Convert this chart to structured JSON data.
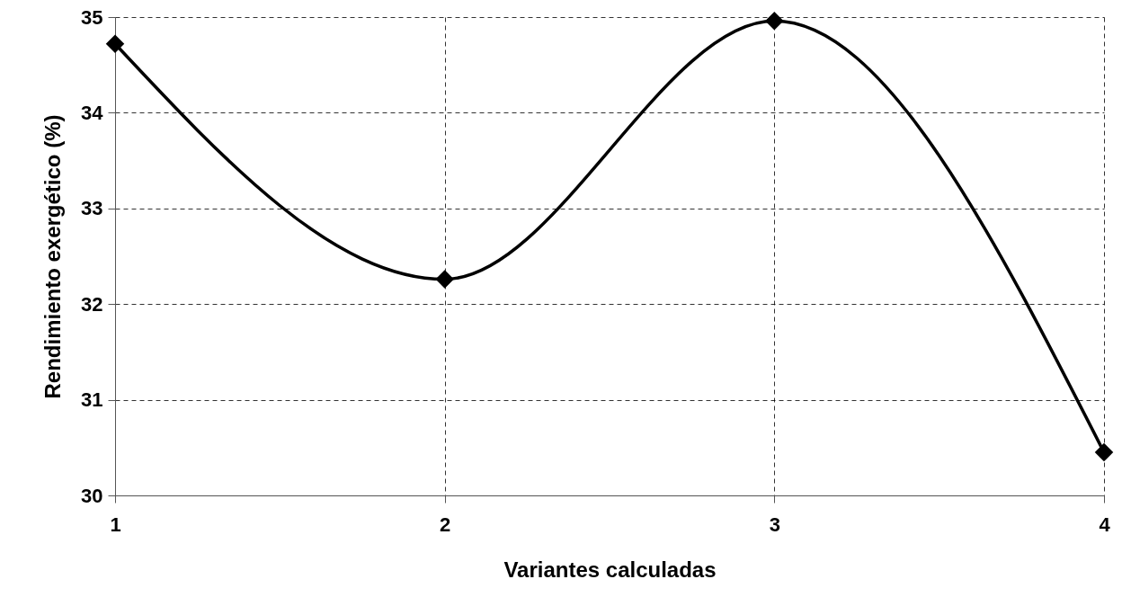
{
  "chart_data": {
    "type": "line",
    "xlabel": "Variantes calculadas",
    "ylabel": "Rendimiento exergético (%)",
    "x": [
      1,
      2,
      3,
      4
    ],
    "series": [
      {
        "color": "#000000",
        "values": [
          34.72,
          32.26,
          34.96,
          30.45
        ]
      }
    ],
    "xlim": [
      1,
      4
    ],
    "xticks": [
      1,
      2,
      3,
      4
    ],
    "ylim": [
      30,
      35
    ],
    "yticks": [
      30,
      31,
      32,
      33,
      34,
      35
    ],
    "grid": true,
    "marker": "diamond",
    "line_style": "solid"
  }
}
